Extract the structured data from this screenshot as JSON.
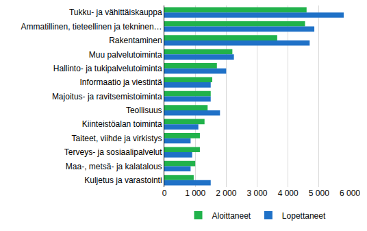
{
  "chart_data": {
    "type": "bar",
    "orientation": "horizontal",
    "categories": [
      "Tukku- ja vähittäiskauppa",
      "Ammatillinen, tieteellinen ja tekninen…",
      "Rakentaminen",
      "Muu palvelutoiminta",
      "Hallinto- ja tukipalvelutoiminta",
      "Informaatio ja viestintä",
      "Majoitus- ja ravitsemistoiminta",
      "Teollisuus",
      "Kiinteistöalan toiminta",
      "Taiteet, viihde ja virkistys",
      "Terveys- ja sosiaalipalvelut",
      "Maa-, metsä- ja kalatalous",
      "Kuljetus ja varastointi"
    ],
    "series": [
      {
        "name": "Aloittaneet",
        "color": "#21b24b",
        "values": [
          4600,
          4550,
          3650,
          2200,
          1700,
          1550,
          1500,
          1400,
          1300,
          1150,
          1150,
          1000,
          950
        ]
      },
      {
        "name": "Lopettaneet",
        "color": "#1f71c7",
        "values": [
          5800,
          4850,
          4700,
          2250,
          2000,
          1500,
          1500,
          1800,
          1100,
          850,
          900,
          850,
          1500
        ]
      }
    ],
    "xlim": [
      0,
      6000
    ],
    "xticks": [
      0,
      {
        "value": 1000,
        "label": "1 000"
      },
      {
        "value": 2000,
        "label": "2 000"
      },
      {
        "value": 3000,
        "label": "3 000"
      },
      {
        "value": 4000,
        "label": "4 000"
      },
      {
        "value": 5000,
        "label": "5 000"
      },
      {
        "value": 6000,
        "label": "6 000"
      }
    ],
    "grid": true,
    "legend": "bottom",
    "data_labels": false
  }
}
